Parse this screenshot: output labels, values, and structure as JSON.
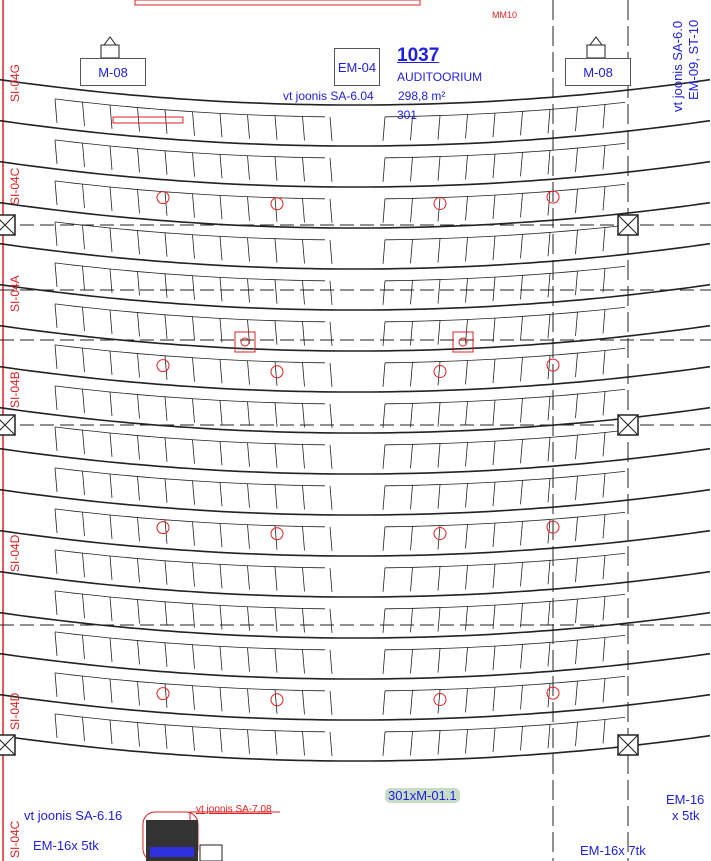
{
  "room": {
    "number": "1037",
    "name": "AUDITOORIUM",
    "area": "298,8 m²",
    "seats": "301"
  },
  "equipment": {
    "left_box": "M-08",
    "right_box": "M-08",
    "center_box": "EM-04",
    "mm_label": "MM10"
  },
  "references": {
    "top_center": "vt joonis SA-6.04",
    "top_right_1": "vt joonis SA-6.0",
    "top_right_2": "EM-09, ST-10",
    "bottom_left": "vt joonis SA-6.16",
    "bottom_red": "vt joonis SA-7.08",
    "seat_tag": "301xM-01.1",
    "bottom_left_em": "EM-16x 5tk",
    "bottom_right_em": "EM-16x 7tk",
    "right_em_1": "EM-16",
    "right_em_2": "x 5tk"
  },
  "section_marks": [
    "SI-04G",
    "SI-04C",
    "SI-04A",
    "SI-04B",
    "SI-04D",
    "SI-04D",
    "SI-04C"
  ],
  "colors": {
    "annotation": "#2020e0",
    "markup": "#e02020",
    "lines": "#222222",
    "tag_bg": "#c8dcc8"
  }
}
